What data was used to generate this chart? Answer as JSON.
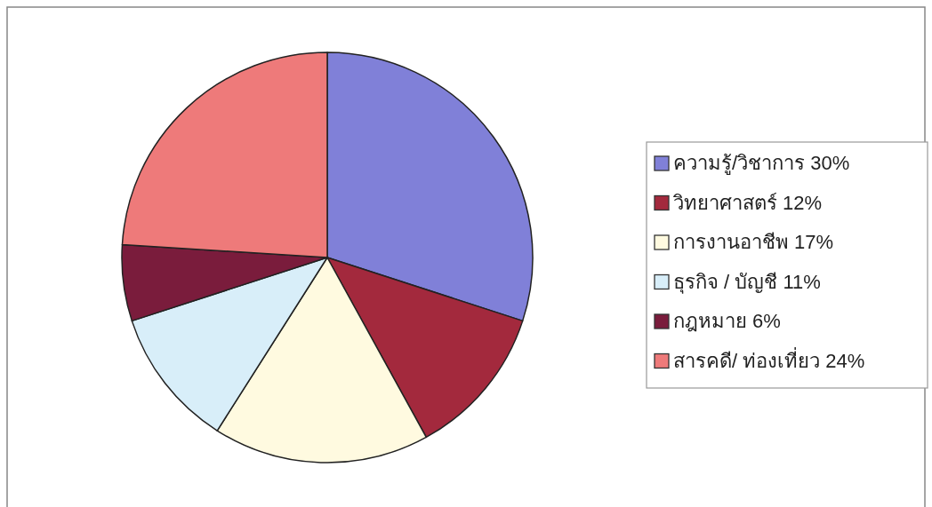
{
  "chart_data": {
    "type": "pie",
    "categories": [
      "ความรู้/วิชาการ 30%",
      "วิทยาศาสตร์ 12%",
      "การงานอาชีพ 17%",
      "ธุรกิจ / บัญชี 11%",
      "กฎหมาย 6%",
      "สารคดี/ ท่องเที่ยว 24%"
    ],
    "values": [
      30,
      12,
      17,
      11,
      6,
      24
    ],
    "colors": [
      "#8080d8",
      "#a3293d",
      "#fffae0",
      "#d8eef9",
      "#7a1c3c",
      "#ee7a7a"
    ],
    "legend": "right"
  }
}
